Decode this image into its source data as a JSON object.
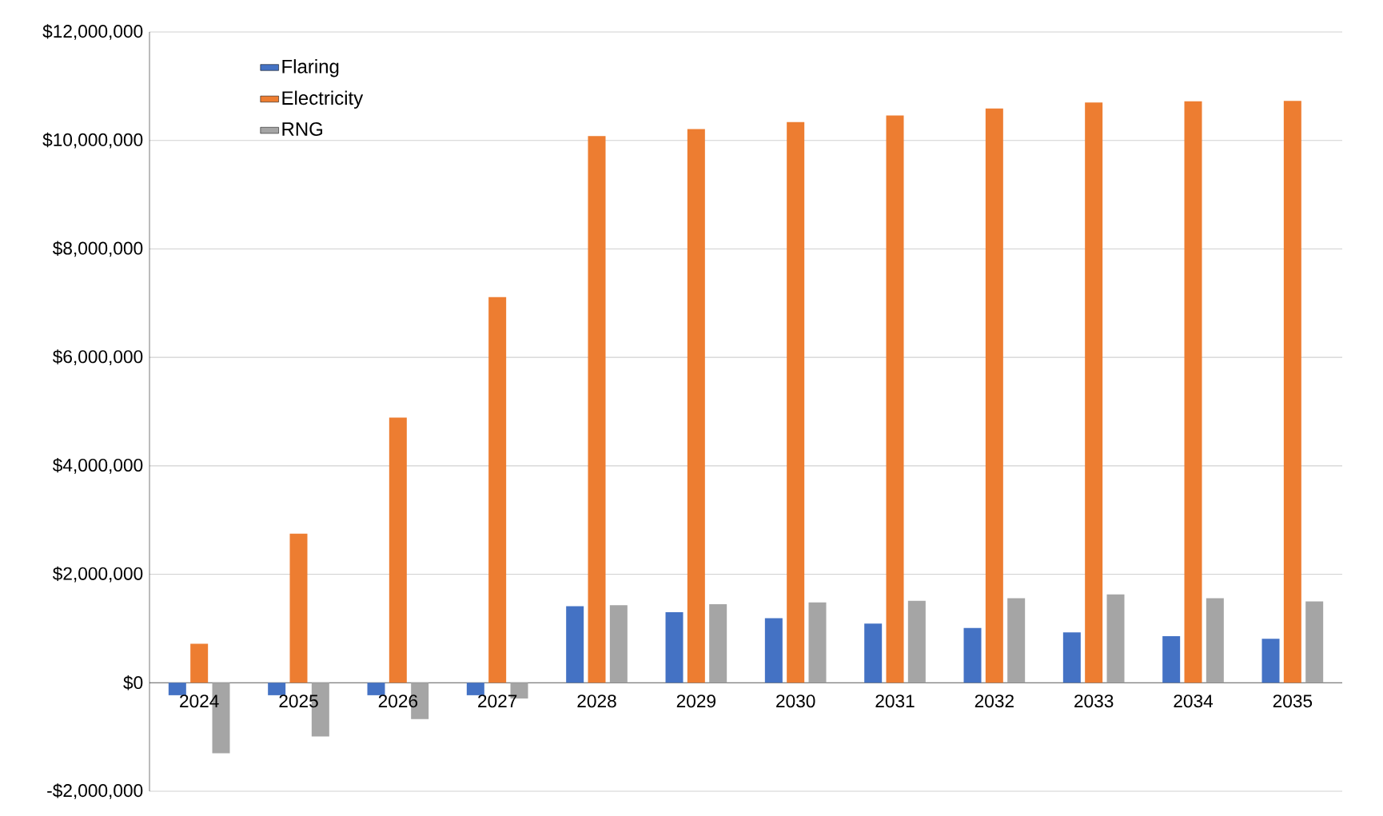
{
  "chart_data": {
    "type": "bar",
    "categories": [
      "2024",
      "2025",
      "2026",
      "2027",
      "2028",
      "2029",
      "2030",
      "2031",
      "2032",
      "2033",
      "2034",
      "2035"
    ],
    "series": [
      {
        "name": "Flaring",
        "color": "#4472c4",
        "values": [
          -230000,
          -230000,
          -230000,
          -230000,
          1410000,
          1300000,
          1190000,
          1090000,
          1010000,
          930000,
          860000,
          810000
        ]
      },
      {
        "name": "Electricity",
        "color": "#ed7d31",
        "values": [
          720000,
          2750000,
          4890000,
          7110000,
          10080000,
          10210000,
          10340000,
          10460000,
          10590000,
          10700000,
          10720000,
          10730000
        ]
      },
      {
        "name": "RNG",
        "color": "#a5a5a5",
        "values": [
          -1300000,
          -990000,
          -670000,
          -290000,
          1430000,
          1450000,
          1480000,
          1510000,
          1560000,
          1630000,
          1560000,
          1500000
        ]
      }
    ],
    "ylim": [
      -2000000,
      12000000
    ],
    "yticks": [
      {
        "value": -2000000,
        "label": "-$2,000,000"
      },
      {
        "value": 0,
        "label": "$0"
      },
      {
        "value": 2000000,
        "label": "$2,000,000"
      },
      {
        "value": 4000000,
        "label": "$4,000,000"
      },
      {
        "value": 6000000,
        "label": "$6,000,000"
      },
      {
        "value": 8000000,
        "label": "$8,000,000"
      },
      {
        "value": 10000000,
        "label": "$10,000,000"
      },
      {
        "value": 12000000,
        "label": "$12,000,000"
      }
    ],
    "grid": "y",
    "legend": "top left"
  }
}
